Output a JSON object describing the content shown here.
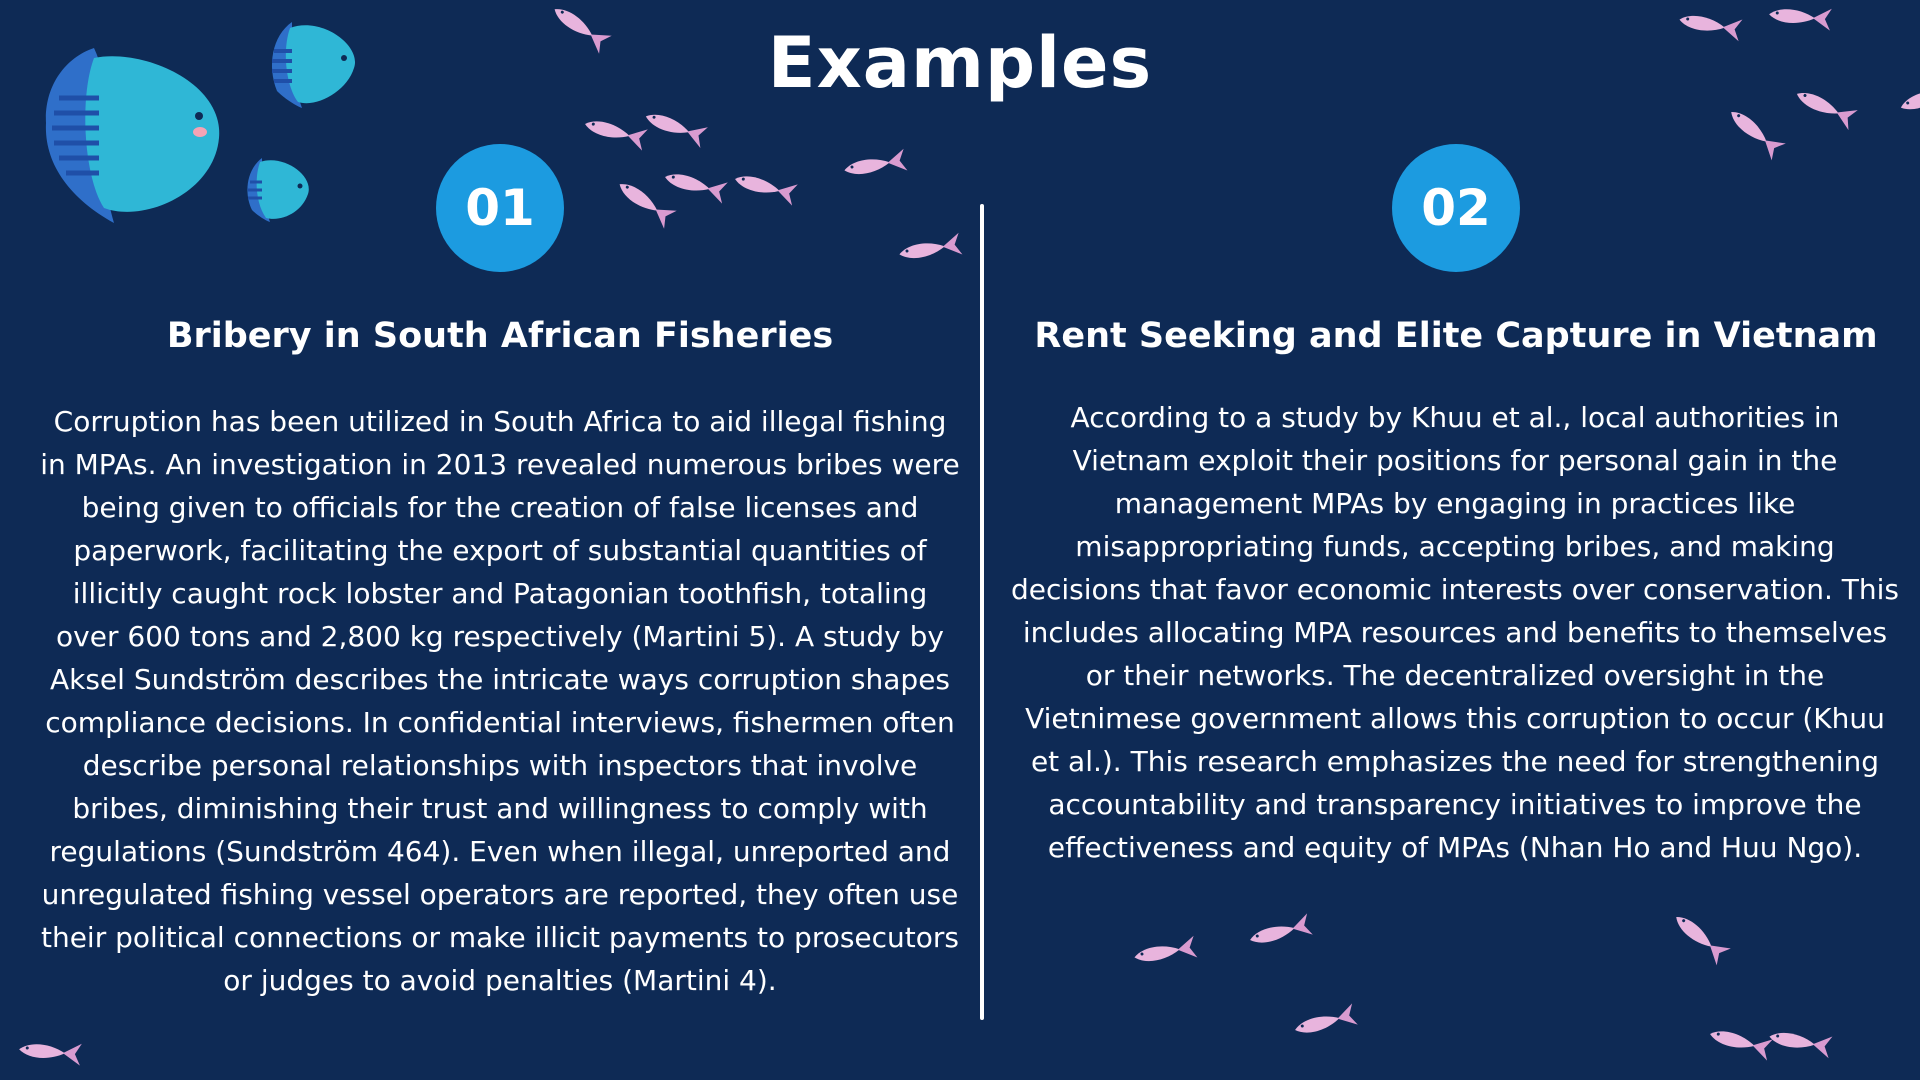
{
  "title": "Examples",
  "colors": {
    "background": "#0e2a55",
    "accent": "#1c9be0",
    "text": "#ffffff",
    "fish_small": "#e8b4dd",
    "fish_big": "#2fb7d6"
  },
  "icons": [
    "big-teal-fish-icon",
    "small-pink-fish-icon"
  ],
  "examples": [
    {
      "number": "01",
      "heading": "Bribery in South African Fisheries",
      "body": "Corruption has been utilized in South Africa to aid illegal fishing in MPAs. An investigation in 2013 revealed numerous bribes were being given to officials for the creation of false licenses and paperwork, facilitating the export of substantial quantities of illicitly caught rock lobster and Patagonian toothfish, totaling over 600 tons and 2,800 kg respectively (Martini 5). A study by Aksel Sundström describes the intricate ways corruption shapes compliance decisions. In confidential interviews, fishermen often describe personal relationships with inspectors that involve bribes, diminishing their trust and willingness to comply with regulations (Sundström 464). Even when illegal, unreported and unregulated fishing vessel operators are reported, they often use their political connections or make illicit payments to prosecutors or judges to avoid penalties (Martini 4)."
    },
    {
      "number": "02",
      "heading": "Rent Seeking and Elite Capture in Vietnam",
      "body": "According to a study by Khuu et al., local authorities in Vietnam exploit their positions for personal gain in the management MPAs by engaging in practices like misappropriating funds, accepting bribes, and making decisions that favor economic interests over conservation. This includes allocating MPA resources and benefits to themselves or their networks. The decentralized oversight in the Vietnimese government allows this corruption to occur (Khuu et al.). This research emphasizes the need for strengthening accountability and transparency initiatives to improve the effectiveness and equity of MPAs (Nhan Ho and Huu Ngo)."
    }
  ]
}
